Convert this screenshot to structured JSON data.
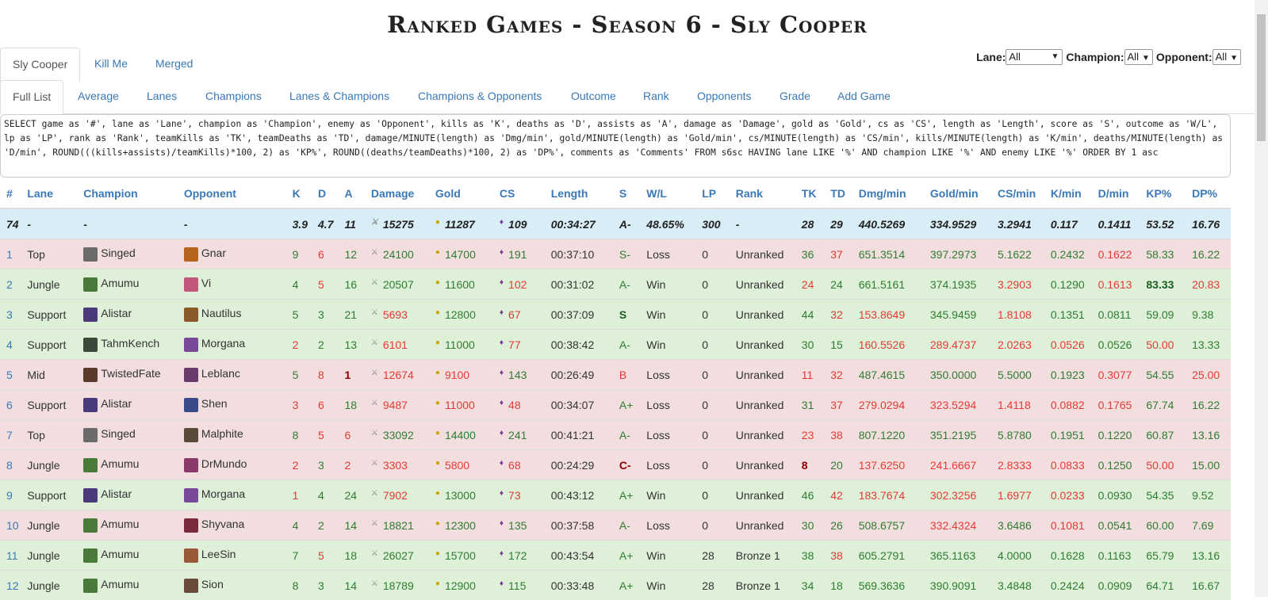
{
  "title": "Ranked Games - Season 6 - Sly Cooper",
  "filters": {
    "lane_label": "Lane:",
    "lane_value": "All",
    "champion_label": "Champion:",
    "champion_value": "All",
    "opponent_label": "Opponent:",
    "opponent_value": "All"
  },
  "player_tabs": [
    "Sly Cooper",
    "Kill Me",
    "Merged"
  ],
  "view_tabs": [
    "Full List",
    "Average",
    "Lanes",
    "Champions",
    "Lanes & Champions",
    "Champions & Opponents",
    "Outcome",
    "Rank",
    "Opponents",
    "Grade",
    "Add Game"
  ],
  "sql": "SELECT game as '#', lane as 'Lane', champion as 'Champion', enemy as 'Opponent', kills as 'K', deaths as 'D', assists as 'A', damage as 'Damage', gold as 'Gold', cs as 'CS', length as 'Length', score as 'S', outcome as 'W/L', lp as 'LP', rank as 'Rank', teamKills as 'TK', teamDeaths as 'TD', damage/MINUTE(length) as 'Dmg/min', gold/MINUTE(length) as 'Gold/min', cs/MINUTE(length) as 'CS/min', kills/MINUTE(length) as 'K/min', deaths/MINUTE(length) as 'D/min', ROUND(((kills+assists)/teamKills)*100, 2) as 'KP%', ROUND((deaths/teamDeaths)*100, 2) as 'DP%', comments as 'Comments' FROM s6sc HAVING lane LIKE '%' AND champion LIKE '%' AND enemy LIKE '%' ORDER BY 1 asc",
  "columns": [
    "#",
    "Lane",
    "Champion",
    "Opponent",
    "K",
    "D",
    "A",
    "Damage",
    "Gold",
    "CS",
    "Length",
    "S",
    "W/L",
    "LP",
    "Rank",
    "TK",
    "TD",
    "Dmg/min",
    "Gold/min",
    "CS/min",
    "K/min",
    "D/min",
    "KP%",
    "DP%"
  ],
  "average": [
    "74",
    "-",
    "-",
    "-",
    "3.9",
    "4.7",
    "11",
    "15275",
    "11287",
    "109",
    "00:34:27",
    "A-",
    "48.65%",
    "300",
    "-",
    "28",
    "29",
    "440.5269",
    "334.9529",
    "3.2941",
    "0.117",
    "0.1411",
    "53.52",
    "16.76"
  ],
  "rows": [
    {
      "outcome": "loss",
      "cells": [
        "1",
        "Top",
        "Singed",
        "Gnar",
        "9",
        "6",
        "12",
        "24100",
        "14700",
        "191",
        "00:37:10",
        "S-",
        "Loss",
        "0",
        "Unranked",
        "36",
        "37",
        "651.3514",
        "397.2973",
        "5.1622",
        "0.2432",
        "0.1622",
        "58.33",
        "16.22"
      ],
      "cc": [
        "num",
        "",
        "",
        "",
        "g",
        "r",
        "g",
        "g",
        "g",
        "g",
        "",
        "g",
        "",
        "",
        "",
        "g",
        "r",
        "g",
        "g",
        "g",
        "g",
        "r",
        "g",
        "g"
      ],
      "champ_color": "#6b6b6b",
      "opp_color": "#b5651d"
    },
    {
      "outcome": "win",
      "cells": [
        "2",
        "Jungle",
        "Amumu",
        "Vi",
        "4",
        "5",
        "16",
        "20507",
        "11600",
        "102",
        "00:31:02",
        "A-",
        "Win",
        "0",
        "Unranked",
        "24",
        "24",
        "661.5161",
        "374.1935",
        "3.2903",
        "0.1290",
        "0.1613",
        "83.33",
        "20.83"
      ],
      "cc": [
        "num",
        "",
        "",
        "",
        "g",
        "r",
        "g",
        "g",
        "g",
        "r",
        "",
        "g",
        "",
        "",
        "",
        "r",
        "g",
        "g",
        "g",
        "r",
        "g",
        "r",
        "dg b",
        "r"
      ],
      "champ_color": "#4a7a3a",
      "opp_color": "#c0577a"
    },
    {
      "outcome": "win",
      "cells": [
        "3",
        "Support",
        "Alistar",
        "Nautilus",
        "5",
        "3",
        "21",
        "5693",
        "12800",
        "67",
        "00:37:09",
        "S",
        "Win",
        "0",
        "Unranked",
        "44",
        "32",
        "153.8649",
        "345.9459",
        "1.8108",
        "0.1351",
        "0.0811",
        "59.09",
        "9.38"
      ],
      "cc": [
        "num",
        "",
        "",
        "",
        "g",
        "g",
        "g",
        "r",
        "g",
        "r",
        "",
        "dg b",
        "",
        "",
        "",
        "g",
        "r",
        "r",
        "g",
        "r",
        "g",
        "g",
        "g",
        "g"
      ],
      "champ_color": "#4b3a7a",
      "opp_color": "#8a5a2a"
    },
    {
      "outcome": "win",
      "cells": [
        "4",
        "Support",
        "TahmKench",
        "Morgana",
        "2",
        "2",
        "13",
        "6101",
        "11000",
        "77",
        "00:38:42",
        "A-",
        "Win",
        "0",
        "Unranked",
        "30",
        "15",
        "160.5526",
        "289.4737",
        "2.0263",
        "0.0526",
        "0.0526",
        "50.00",
        "13.33"
      ],
      "cc": [
        "num",
        "",
        "",
        "",
        "r",
        "g",
        "g",
        "r",
        "g",
        "r",
        "",
        "g",
        "",
        "",
        "",
        "g",
        "g",
        "r",
        "r",
        "r",
        "r",
        "g",
        "r",
        "g"
      ],
      "champ_color": "#3a4a3a",
      "opp_color": "#7a4a9a"
    },
    {
      "outcome": "loss",
      "cells": [
        "5",
        "Mid",
        "TwistedFate",
        "Leblanc",
        "5",
        "8",
        "1",
        "12674",
        "9100",
        "143",
        "00:26:49",
        "B",
        "Loss",
        "0",
        "Unranked",
        "11",
        "32",
        "487.4615",
        "350.0000",
        "5.5000",
        "0.1923",
        "0.3077",
        "54.55",
        "25.00"
      ],
      "cc": [
        "num",
        "",
        "",
        "",
        "g",
        "r",
        "dk b",
        "r",
        "r",
        "g",
        "",
        "r",
        "",
        "",
        "",
        "r",
        "r",
        "g",
        "g",
        "g",
        "g",
        "r",
        "g",
        "r"
      ],
      "champ_color": "#5a3a2a",
      "opp_color": "#6a3a6a"
    },
    {
      "outcome": "loss",
      "cells": [
        "6",
        "Support",
        "Alistar",
        "Shen",
        "3",
        "6",
        "18",
        "9487",
        "11000",
        "48",
        "00:34:07",
        "A+",
        "Loss",
        "0",
        "Unranked",
        "31",
        "37",
        "279.0294",
        "323.5294",
        "1.4118",
        "0.0882",
        "0.1765",
        "67.74",
        "16.22"
      ],
      "cc": [
        "num",
        "",
        "",
        "",
        "r",
        "r",
        "g",
        "r",
        "r",
        "r",
        "",
        "g",
        "",
        "",
        "",
        "g",
        "r",
        "r",
        "r",
        "r",
        "r",
        "r",
        "g",
        "g"
      ],
      "champ_color": "#4b3a7a",
      "opp_color": "#3a4a8a"
    },
    {
      "outcome": "loss",
      "cells": [
        "7",
        "Top",
        "Singed",
        "Malphite",
        "8",
        "5",
        "6",
        "33092",
        "14400",
        "241",
        "00:41:21",
        "A-",
        "Loss",
        "0",
        "Unranked",
        "23",
        "38",
        "807.1220",
        "351.2195",
        "5.8780",
        "0.1951",
        "0.1220",
        "60.87",
        "13.16"
      ],
      "cc": [
        "num",
        "",
        "",
        "",
        "g",
        "r",
        "r",
        "g",
        "g",
        "g",
        "",
        "g",
        "",
        "",
        "",
        "r",
        "r",
        "g",
        "g",
        "g",
        "g",
        "g",
        "g",
        "g"
      ],
      "champ_color": "#6b6b6b",
      "opp_color": "#5a4a3a"
    },
    {
      "outcome": "loss",
      "cells": [
        "8",
        "Jungle",
        "Amumu",
        "DrMundo",
        "2",
        "3",
        "2",
        "3303",
        "5800",
        "68",
        "00:24:29",
        "C-",
        "Loss",
        "0",
        "Unranked",
        "8",
        "20",
        "137.6250",
        "241.6667",
        "2.8333",
        "0.0833",
        "0.1250",
        "50.00",
        "15.00"
      ],
      "cc": [
        "num",
        "",
        "",
        "",
        "r",
        "g",
        "r",
        "r",
        "r",
        "r",
        "",
        "dk b",
        "",
        "",
        "",
        "dk b",
        "g",
        "r",
        "r",
        "r",
        "r",
        "g",
        "r",
        "g"
      ],
      "champ_color": "#4a7a3a",
      "opp_color": "#8a3a6a"
    },
    {
      "outcome": "win",
      "cells": [
        "9",
        "Support",
        "Alistar",
        "Morgana",
        "1",
        "4",
        "24",
        "7902",
        "13000",
        "73",
        "00:43:12",
        "A+",
        "Win",
        "0",
        "Unranked",
        "46",
        "42",
        "183.7674",
        "302.3256",
        "1.6977",
        "0.0233",
        "0.0930",
        "54.35",
        "9.52"
      ],
      "cc": [
        "num",
        "",
        "",
        "",
        "r",
        "g",
        "g",
        "r",
        "g",
        "r",
        "",
        "g",
        "",
        "",
        "",
        "g",
        "r",
        "r",
        "r",
        "r",
        "r",
        "g",
        "g",
        "g"
      ],
      "champ_color": "#4b3a7a",
      "opp_color": "#7a4a9a"
    },
    {
      "outcome": "loss",
      "cells": [
        "10",
        "Jungle",
        "Amumu",
        "Shyvana",
        "4",
        "2",
        "14",
        "18821",
        "12300",
        "135",
        "00:37:58",
        "A-",
        "Loss",
        "0",
        "Unranked",
        "30",
        "26",
        "508.6757",
        "332.4324",
        "3.6486",
        "0.1081",
        "0.0541",
        "60.00",
        "7.69"
      ],
      "cc": [
        "num",
        "",
        "",
        "",
        "g",
        "g",
        "g",
        "g",
        "g",
        "g",
        "",
        "g",
        "",
        "",
        "",
        "g",
        "g",
        "g",
        "r",
        "g",
        "r",
        "g",
        "g",
        "g"
      ],
      "champ_color": "#4a7a3a",
      "opp_color": "#7a2a3a"
    },
    {
      "outcome": "win",
      "cells": [
        "11",
        "Jungle",
        "Amumu",
        "LeeSin",
        "7",
        "5",
        "18",
        "26027",
        "15700",
        "172",
        "00:43:54",
        "A+",
        "Win",
        "28",
        "Bronze 1",
        "38",
        "38",
        "605.2791",
        "365.1163",
        "4.0000",
        "0.1628",
        "0.1163",
        "65.79",
        "13.16"
      ],
      "cc": [
        "num",
        "",
        "",
        "",
        "g",
        "r",
        "g",
        "g",
        "g",
        "g",
        "",
        "g",
        "",
        "",
        "",
        "g",
        "r",
        "g",
        "g",
        "g",
        "g",
        "g",
        "g",
        "g"
      ],
      "champ_color": "#4a7a3a",
      "opp_color": "#9a5a3a"
    },
    {
      "outcome": "win",
      "cells": [
        "12",
        "Jungle",
        "Amumu",
        "Sion",
        "8",
        "3",
        "14",
        "18789",
        "12900",
        "115",
        "00:33:48",
        "A+",
        "Win",
        "28",
        "Bronze 1",
        "34",
        "18",
        "569.3636",
        "390.9091",
        "3.4848",
        "0.2424",
        "0.0909",
        "64.71",
        "16.67"
      ],
      "cc": [
        "num",
        "",
        "",
        "",
        "g",
        "g",
        "g",
        "g",
        "g",
        "g",
        "",
        "g",
        "",
        "",
        "",
        "g",
        "g",
        "g",
        "g",
        "g",
        "g",
        "g",
        "g",
        "g"
      ],
      "champ_color": "#4a7a3a",
      "opp_color": "#6a4a3a"
    }
  ]
}
